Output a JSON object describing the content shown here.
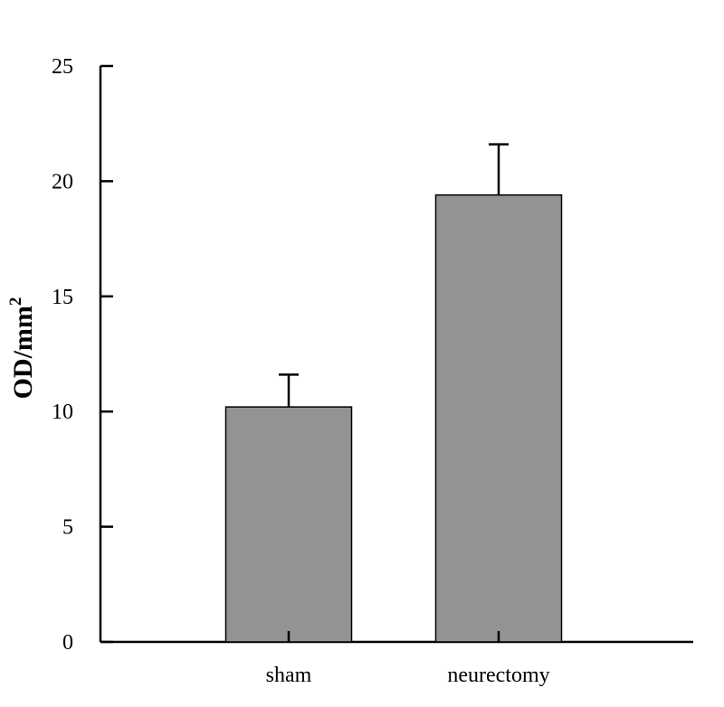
{
  "chart_data": {
    "type": "bar",
    "categories": [
      "sham",
      "neurectomy"
    ],
    "values": [
      10.2,
      19.4
    ],
    "error_upper": [
      1.4,
      2.2
    ],
    "ylabel": "OD/mm",
    "ylabel_superscript": "2",
    "ylim": [
      0,
      25
    ],
    "yticks": [
      "0",
      "5",
      "10",
      "15",
      "20",
      "25"
    ],
    "grid": false,
    "bar_color": "#939393",
    "bar_edge_color": "#000000"
  }
}
